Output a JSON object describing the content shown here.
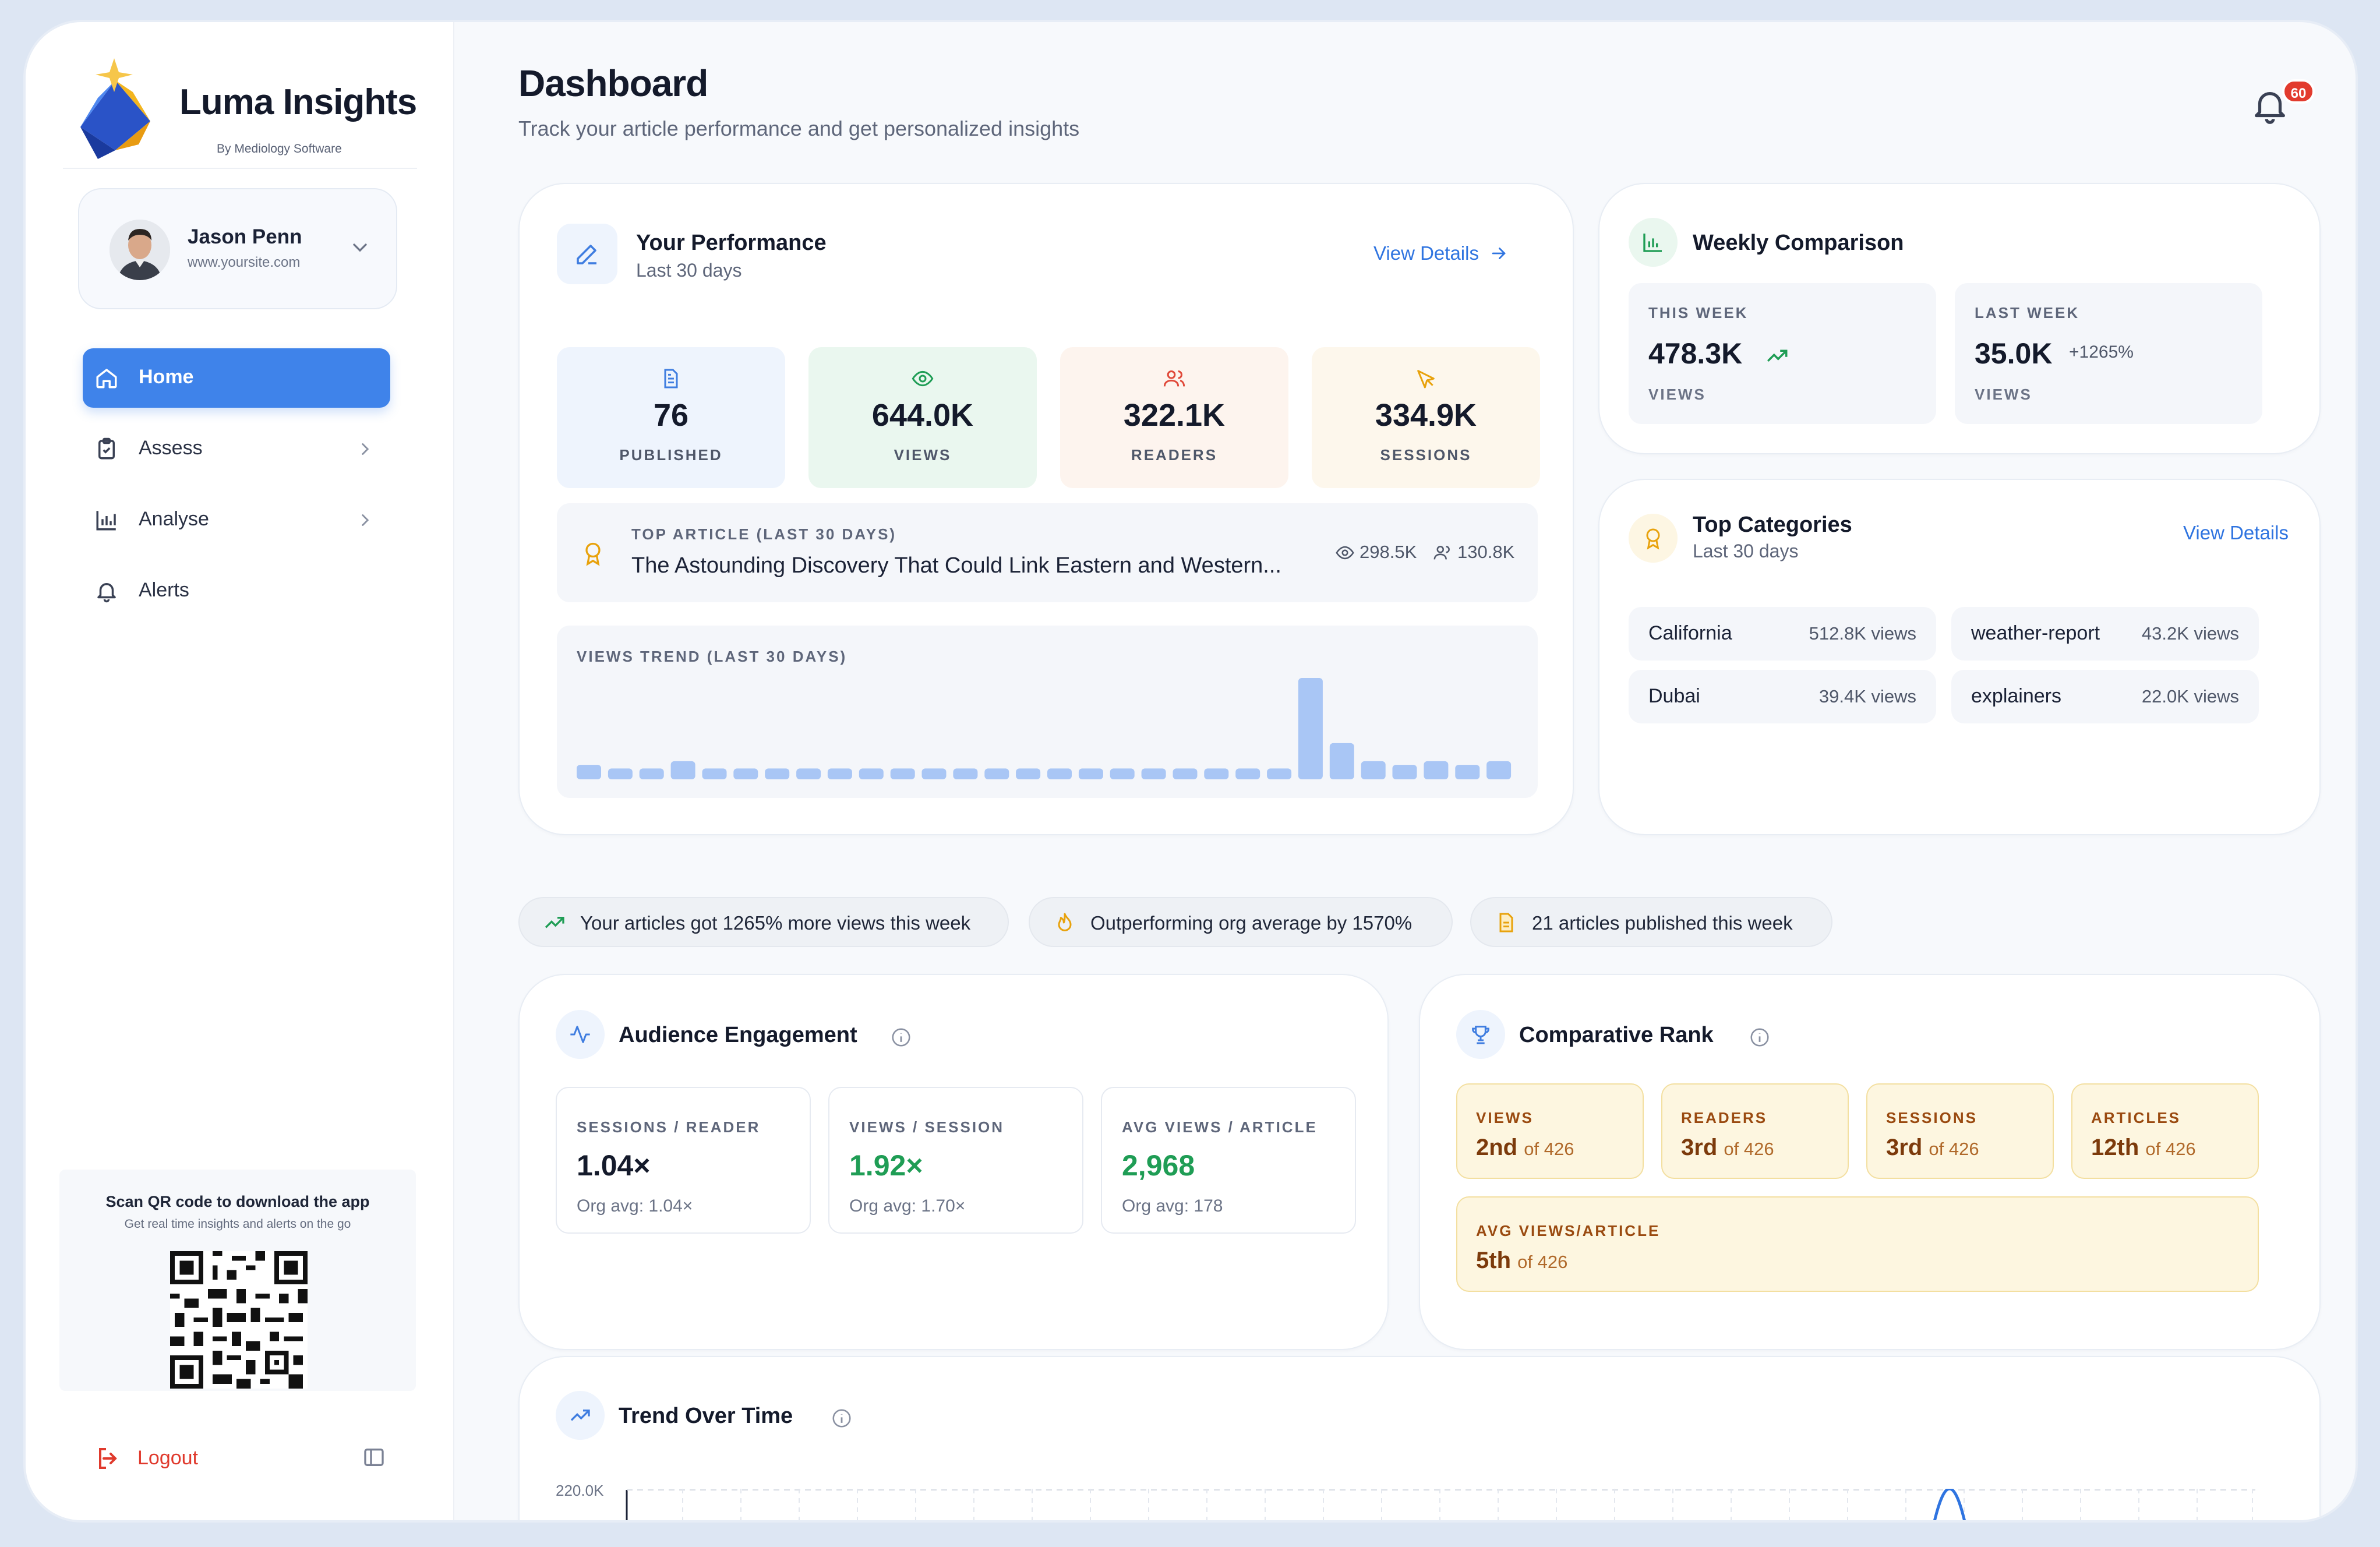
{
  "brand": {
    "name": "Luma Insights",
    "sub": "By Mediology Software"
  },
  "user": {
    "name": "Jason Penn",
    "site": "www.yoursite.com"
  },
  "nav": [
    {
      "label": "Home",
      "icon": "home-icon",
      "active": true
    },
    {
      "label": "Assess",
      "icon": "clipboard-icon"
    },
    {
      "label": "Analyse",
      "icon": "bar-chart-icon"
    },
    {
      "label": "Alerts",
      "icon": "bell-icon"
    }
  ],
  "qr": {
    "title": "Scan QR code to download the app",
    "sub": "Get real time insights and alerts on the go"
  },
  "logout": "Logout",
  "header": {
    "title": "Dashboard",
    "subtitle": "Track your article performance and get personalized insights",
    "notifications": "60"
  },
  "performance": {
    "title": "Your Performance",
    "sub": "Last 30 days",
    "link": "View Details",
    "metrics": [
      {
        "value": "76",
        "label": "PUBLISHED",
        "icon": "document-icon",
        "color": "#3f7de0",
        "bg": "#eef4fd"
      },
      {
        "value": "644.0K",
        "label": "VIEWS",
        "icon": "eye-icon",
        "color": "#1f9d55",
        "bg": "#eaf7ef"
      },
      {
        "value": "322.1K",
        "label": "READERS",
        "icon": "users-icon",
        "color": "#e0493a",
        "bg": "#fdf1ee"
      },
      {
        "value": "334.9K",
        "label": "SESSIONS",
        "icon": "cursor-icon",
        "color": "#e8a20c",
        "bg": "#fdf6ea"
      }
    ],
    "top_article": {
      "label": "TOP ARTICLE (LAST 30 DAYS)",
      "title": "The Astounding Discovery That Could Link Eastern and Western...",
      "views": "298.5K",
      "readers": "130.8K"
    },
    "trend_label": "VIEWS TREND (LAST 30 DAYS)",
    "trend_values": [
      4,
      3,
      3,
      5,
      3,
      3,
      3,
      3,
      3,
      3,
      3,
      3,
      3,
      3,
      3,
      3,
      3,
      3,
      3,
      3,
      3,
      3,
      3,
      28,
      10,
      5,
      4,
      5,
      4,
      5
    ]
  },
  "weekly": {
    "title": "Weekly Comparison",
    "this_week": {
      "label": "THIS WEEK",
      "value": "478.3K",
      "foot": "VIEWS"
    },
    "last_week": {
      "label": "LAST WEEK",
      "value": "35.0K",
      "change": "+1265%",
      "foot": "VIEWS"
    }
  },
  "categories": {
    "title": "Top Categories",
    "sub": "Last 30 days",
    "link": "View Details",
    "items": [
      {
        "name": "California",
        "views": "512.8K views"
      },
      {
        "name": "weather-report",
        "views": "43.2K views"
      },
      {
        "name": "Dubai",
        "views": "39.4K views"
      },
      {
        "name": "explainers",
        "views": "22.0K views"
      }
    ]
  },
  "pills": [
    "Your articles got 1265% more views this week",
    "Outperforming org average by 1570%",
    "21 articles published this week"
  ],
  "engagement": {
    "title": "Audience Engagement",
    "items": [
      {
        "label": "SESSIONS / READER",
        "value": "1.04×",
        "org": "Org avg: 1.04×",
        "color": "#141a2b"
      },
      {
        "label": "VIEWS / SESSION",
        "value": "1.92×",
        "org": "Org avg: 1.70×",
        "color": "#1f9d55"
      },
      {
        "label": "AVG VIEWS / ARTICLE",
        "value": "2,968",
        "org": "Org avg: 178",
        "color": "#1f9d55"
      }
    ]
  },
  "rank": {
    "title": "Comparative Rank",
    "items": [
      {
        "label": "VIEWS",
        "rank": "2nd",
        "of": "of 426"
      },
      {
        "label": "READERS",
        "rank": "3rd",
        "of": "of 426"
      },
      {
        "label": "SESSIONS",
        "rank": "3rd",
        "of": "of 426"
      },
      {
        "label": "ARTICLES",
        "rank": "12th",
        "of": "of 426"
      },
      {
        "label": "AVG VIEWS/ARTICLE",
        "rank": "5th",
        "of": "of 426"
      }
    ]
  },
  "trend": {
    "title": "Trend Over Time",
    "y_top": "220.0K"
  }
}
